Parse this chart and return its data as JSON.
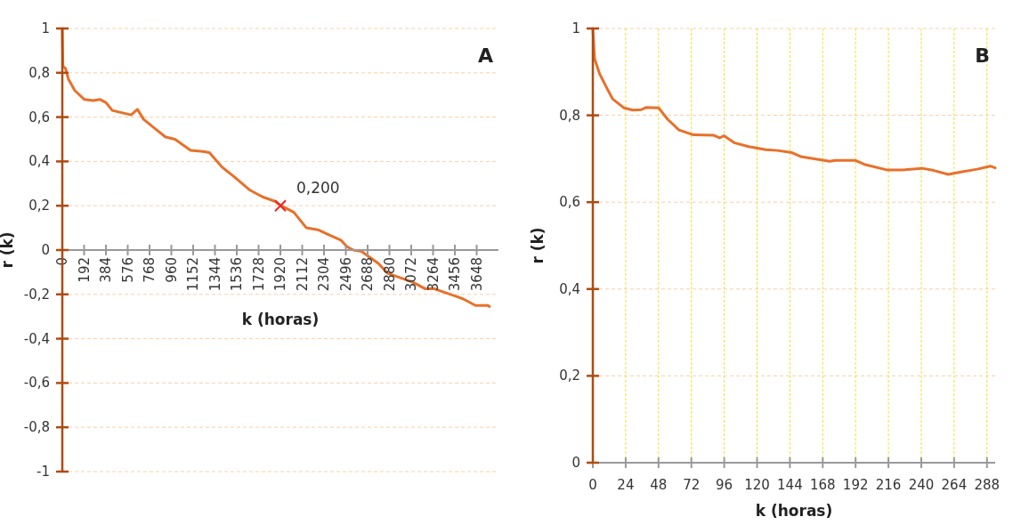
{
  "chart_data": [
    {
      "type": "line",
      "title": "A",
      "xlabel": "k (horas)",
      "ylabel": "r (k)",
      "xlim": [
        0,
        3840
      ],
      "ylim": [
        -1,
        1
      ],
      "xticks": [
        0,
        192,
        384,
        576,
        768,
        960,
        1152,
        1344,
        1536,
        1728,
        1920,
        2112,
        2304,
        2496,
        2688,
        2880,
        3072,
        3264,
        3456,
        3648
      ],
      "yticks": [
        {
          "value": -1,
          "label": "-1"
        },
        {
          "value": -0.8,
          "label": "-0,8"
        },
        {
          "value": -0.6,
          "label": "-0,6"
        },
        {
          "value": -0.4,
          "label": "-0,4"
        },
        {
          "value": -0.2,
          "label": "-0,2"
        },
        {
          "value": 0,
          "label": "0"
        },
        {
          "value": 0.2,
          "label": "0,2"
        },
        {
          "value": 0.4,
          "label": "0,4"
        },
        {
          "value": 0.6,
          "label": "0,6"
        },
        {
          "value": 0.8,
          "label": "0,8"
        },
        {
          "value": 1,
          "label": "1"
        }
      ],
      "grid": "y",
      "series": [
        {
          "color": "#e8702a",
          "x": [
            0,
            5,
            28,
            55,
            110,
            193,
            275,
            330,
            385,
            440,
            523,
            606,
            661,
            716,
            800,
            909,
            992,
            1047,
            1130,
            1240,
            1295,
            1405,
            1515,
            1653,
            1763,
            1873,
            1928,
            2039,
            2149,
            2259,
            2342,
            2452,
            2507,
            2562,
            2631,
            2700,
            2782,
            2865,
            2975,
            3086,
            3196,
            3278,
            3389,
            3526,
            3637,
            3747,
            3761
          ],
          "values": [
            1.0,
            0.83,
            0.82,
            0.77,
            0.72,
            0.68,
            0.675,
            0.68,
            0.665,
            0.63,
            0.62,
            0.61,
            0.635,
            0.59,
            0.555,
            0.51,
            0.5,
            0.48,
            0.45,
            0.445,
            0.44,
            0.375,
            0.33,
            0.27,
            0.24,
            0.22,
            0.2,
            0.17,
            0.1,
            0.09,
            0.07,
            0.045,
            0.015,
            0.0,
            -0.005,
            -0.03,
            -0.06,
            -0.105,
            -0.125,
            -0.145,
            -0.175,
            -0.175,
            -0.195,
            -0.22,
            -0.25,
            -0.25,
            -0.255
          ]
        },
        {
          "type": "scatter",
          "color": "#e8262a",
          "marker": "cross",
          "x": [
            1920
          ],
          "values": [
            0.2
          ],
          "value_labels": [
            "0,200"
          ]
        }
      ]
    },
    {
      "type": "line",
      "title": "B",
      "xlabel": "k (horas)",
      "ylabel": "r (k)",
      "xlim": [
        0,
        294
      ],
      "ylim": [
        0,
        1
      ],
      "xticks": [
        0,
        24,
        48,
        72,
        96,
        120,
        144,
        168,
        192,
        216,
        240,
        264,
        288
      ],
      "yticks": [
        {
          "value": 0,
          "label": "0"
        },
        {
          "value": 0.2,
          "label": "0,2"
        },
        {
          "value": 0.4,
          "label": "0,4"
        },
        {
          "value": 0.6,
          "label": "0,6"
        },
        {
          "value": 0.8,
          "label": "0,8"
        },
        {
          "value": 1,
          "label": "1"
        }
      ],
      "grid": true,
      "series": [
        {
          "color": "#e8702a",
          "x": [
            0,
            1.3,
            4.9,
            10.2,
            14.4,
            22.8,
            29.2,
            35.5,
            38.7,
            48.2,
            54.6,
            63,
            73.6,
            88.4,
            92.6,
            95.8,
            103.2,
            113.8,
            126.5,
            135,
            145.5,
            151.9,
            173,
            177.2,
            192,
            198.4,
            215.3,
            225.9,
            240.7,
            249.1,
            259.7,
            268.2,
            280.9,
            290.4,
            294
          ],
          "values": [
            1.0,
            0.93,
            0.896,
            0.863,
            0.838,
            0.817,
            0.812,
            0.813,
            0.818,
            0.817,
            0.791,
            0.766,
            0.755,
            0.754,
            0.748,
            0.753,
            0.737,
            0.728,
            0.721,
            0.719,
            0.714,
            0.705,
            0.694,
            0.696,
            0.696,
            0.687,
            0.674,
            0.674,
            0.678,
            0.673,
            0.664,
            0.669,
            0.676,
            0.683,
            0.679
          ]
        }
      ]
    }
  ]
}
